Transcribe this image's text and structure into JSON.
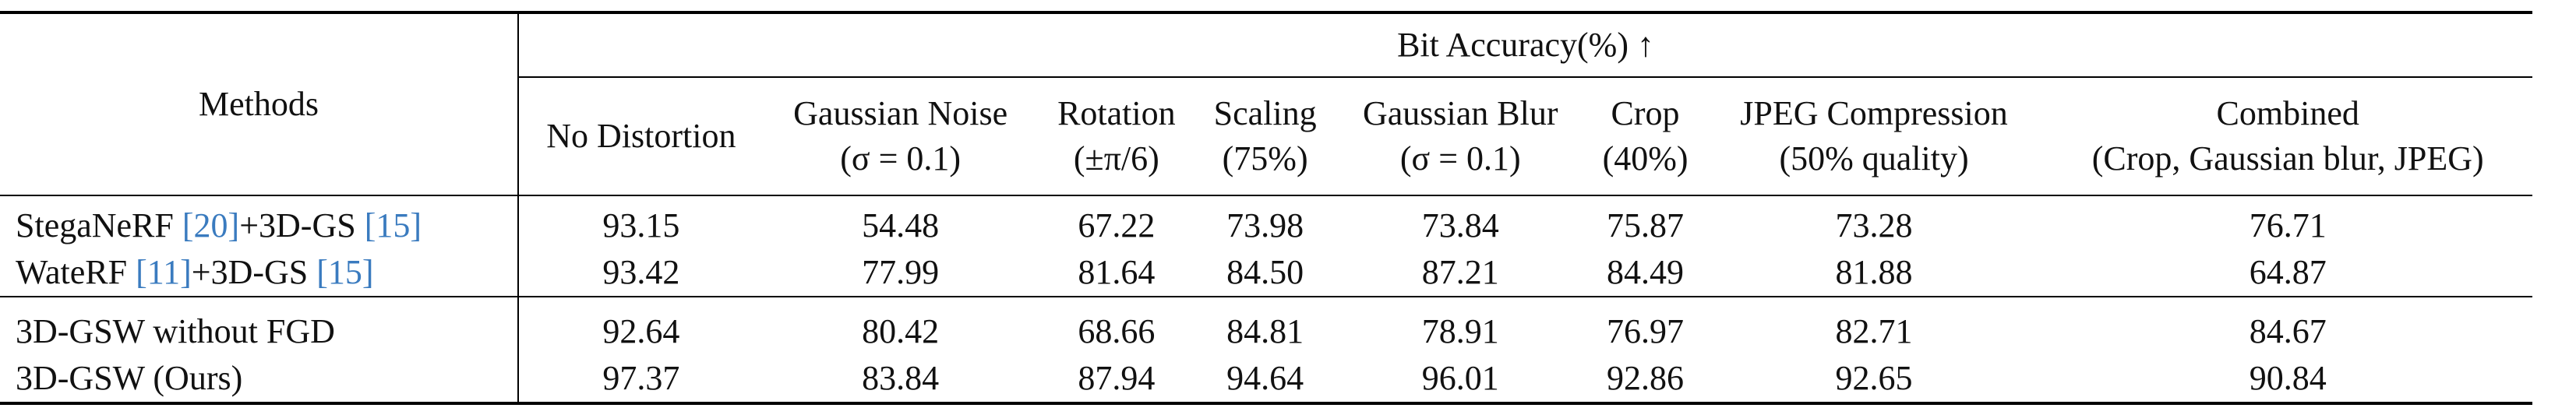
{
  "table": {
    "methods_label": "Methods",
    "group_label": "Bit Accuracy(%) ↑",
    "columns": [
      {
        "line1": "No Distortion",
        "line2": ""
      },
      {
        "line1": "Gaussian Noise",
        "line2": "(σ = 0.1)"
      },
      {
        "line1": "Rotation",
        "line2": "(±π/6)"
      },
      {
        "line1": "Scaling",
        "line2": "(75%)"
      },
      {
        "line1": "Gaussian Blur",
        "line2": "(σ = 0.1)"
      },
      {
        "line1": "Crop",
        "line2": "(40%)"
      },
      {
        "line1": "JPEG Compression",
        "line2": "(50% quality)"
      },
      {
        "line1": "Combined",
        "line2": "(Crop, Gaussian blur, JPEG)"
      }
    ],
    "rows": [
      {
        "method": {
          "name_a": "StegaNeRF ",
          "cite_a": "[20]",
          "name_b": "+3D-GS ",
          "cite_b": "[15]"
        },
        "values": [
          "93.15",
          "54.48",
          "67.22",
          "73.98",
          "73.84",
          "75.87",
          "73.28",
          "76.71"
        ]
      },
      {
        "method": {
          "name_a": "WateRF ",
          "cite_a": "[11]",
          "name_b": "+3D-GS ",
          "cite_b": "[15]"
        },
        "values": [
          "93.42",
          "77.99",
          "81.64",
          "84.50",
          "87.21",
          "84.49",
          "81.88",
          "64.87"
        ]
      },
      {
        "method": {
          "name_a": "3D-GSW without FGD",
          "cite_a": "",
          "name_b": "",
          "cite_b": ""
        },
        "values": [
          "92.64",
          "80.42",
          "68.66",
          "84.81",
          "78.91",
          "76.97",
          "82.71",
          "84.67"
        ]
      },
      {
        "method": {
          "name_a": "3D-GSW (Ours)",
          "cite_a": "",
          "name_b": "",
          "cite_b": ""
        },
        "values": [
          "97.37",
          "83.84",
          "87.94",
          "94.64",
          "96.01",
          "92.86",
          "92.65",
          "90.84"
        ]
      }
    ]
  }
}
